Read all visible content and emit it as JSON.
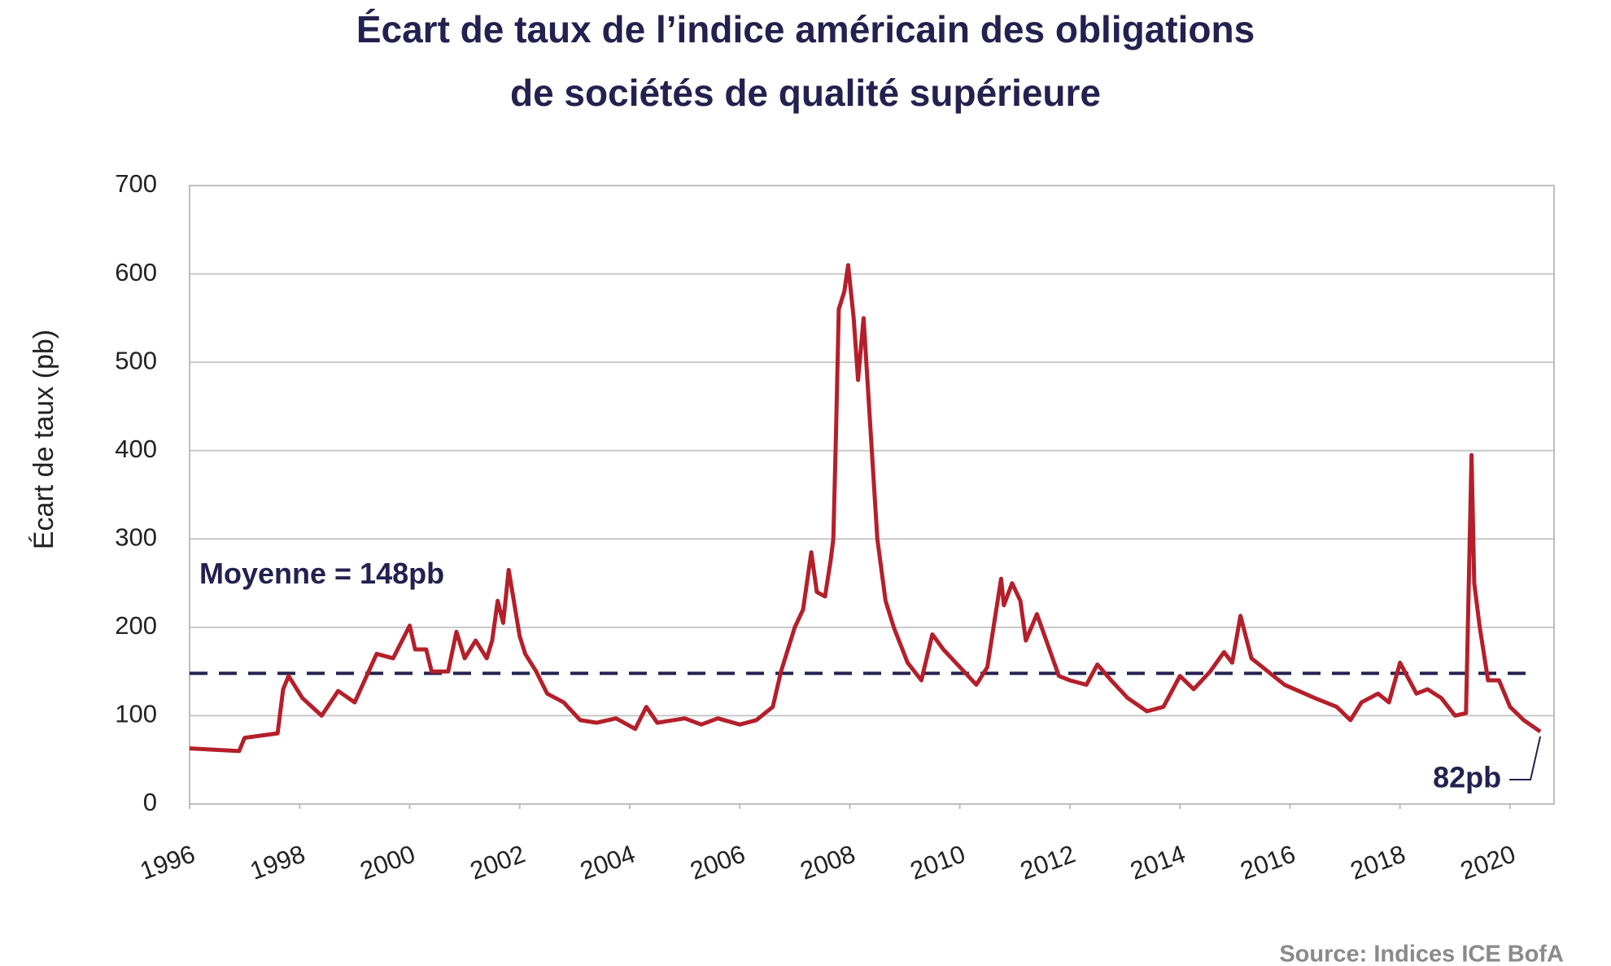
{
  "chart_data": {
    "type": "line",
    "title": [
      "Écart de taux de l’indice américain des obligations",
      "de sociétés de qualité supérieure"
    ],
    "y_label": "Écart de taux (pb)",
    "source": "Source: Indices ICE BofA",
    "color": "#b51f2a",
    "grid": true,
    "mean": {
      "value": 148,
      "label": "Moyenne = 148pb",
      "color": "#23214f"
    },
    "end_label": "82pb",
    "xlim": [
      1996,
      2020.8
    ],
    "xticks": [
      1996,
      1998,
      2000,
      2002,
      2004,
      2006,
      2008,
      2010,
      2012,
      2014,
      2016,
      2018,
      2020
    ],
    "ylim": [
      0,
      700
    ],
    "yticks": [
      0,
      100,
      200,
      300,
      400,
      500,
      600,
      700
    ],
    "x": [
      1996.0,
      1996.9,
      1997.0,
      1997.6,
      1997.7,
      1997.8,
      1998.05,
      1998.4,
      1998.7,
      1999.0,
      1999.4,
      1999.7,
      2000.0,
      2000.1,
      2000.3,
      2000.4,
      2000.7,
      2000.85,
      2001.0,
      2001.2,
      2001.4,
      2001.5,
      2001.6,
      2001.7,
      2001.8,
      2002.0,
      2002.1,
      2002.3,
      2002.5,
      2002.8,
      2003.1,
      2003.4,
      2003.75,
      2004.1,
      2004.3,
      2004.5,
      2005.0,
      2005.3,
      2005.6,
      2006.0,
      2006.3,
      2006.6,
      2006.75,
      2007.0,
      2007.15,
      2007.3,
      2007.4,
      2007.55,
      2007.65,
      2007.7,
      2007.75,
      2007.8,
      2007.9,
      2007.97,
      2008.07,
      2008.15,
      2008.25,
      2008.4,
      2008.5,
      2008.65,
      2008.8,
      2009.05,
      2009.3,
      2009.5,
      2009.7,
      2010.0,
      2010.3,
      2010.5,
      2010.65,
      2010.75,
      2010.8,
      2010.95,
      2011.1,
      2011.2,
      2011.4,
      2011.6,
      2011.8,
      2012.0,
      2012.3,
      2012.5,
      2012.75,
      2013.05,
      2013.4,
      2013.7,
      2014.0,
      2014.25,
      2014.55,
      2014.8,
      2014.95,
      2015.1,
      2015.3,
      2015.5,
      2015.9,
      2016.45,
      2016.85,
      2017.1,
      2017.3,
      2017.6,
      2017.8,
      2018.0,
      2018.3,
      2018.5,
      2018.75,
      2019.0,
      2019.2,
      2019.3,
      2019.35,
      2019.45,
      2019.6,
      2019.8,
      2020.0,
      2020.25,
      2020.55
    ],
    "values": [
      63,
      60,
      75,
      80,
      130,
      145,
      120,
      100,
      128,
      115,
      170,
      165,
      202,
      175,
      175,
      150,
      150,
      195,
      165,
      185,
      165,
      185,
      230,
      205,
      265,
      190,
      170,
      150,
      125,
      115,
      95,
      92,
      97,
      85,
      110,
      92,
      97,
      90,
      97,
      90,
      95,
      110,
      150,
      200,
      220,
      285,
      240,
      235,
      275,
      300,
      420,
      560,
      580,
      610,
      550,
      480,
      550,
      400,
      300,
      230,
      200,
      160,
      140,
      192,
      175,
      155,
      135,
      155,
      215,
      255,
      225,
      250,
      230,
      185,
      215,
      180,
      145,
      140,
      135,
      158,
      140,
      120,
      105,
      110,
      145,
      130,
      150,
      172,
      160,
      213,
      165,
      155,
      135,
      120,
      110,
      95,
      115,
      125,
      115,
      160,
      125,
      130,
      120,
      100,
      103,
      395,
      250,
      200,
      140,
      140,
      110,
      95,
      82
    ]
  }
}
